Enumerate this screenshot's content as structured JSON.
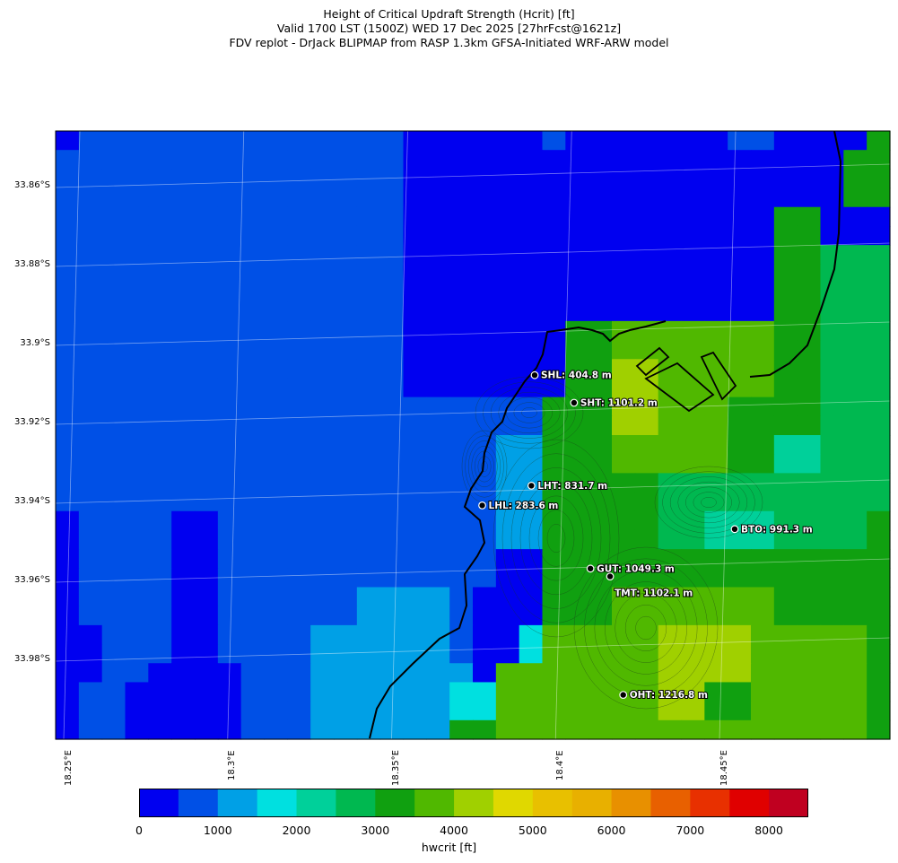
{
  "title": {
    "line1": "Height of Critical Updraft Strength (Hcrit) [ft]",
    "line2": "Valid 1700 LST (1500Z) WED 17 Dec 2025 [27hrFcst@1621z]",
    "line3": "FDV replot - DrJack BLIPMAP from RASP 1.3km GFSA-Initiated WRF-ARW model"
  },
  "axes": {
    "lat_labels": [
      "33.86°S",
      "33.88°S",
      "33.9°S",
      "33.92°S",
      "33.94°S",
      "33.96°S",
      "33.98°S"
    ],
    "lon_labels": [
      "18.25°E",
      "18.3°E",
      "18.35°E",
      "18.4°E",
      "18.45°E"
    ]
  },
  "stations": [
    {
      "code": "SHL",
      "label": "SHL: 404.8 m",
      "lon": 18.392,
      "lat": -33.908
    },
    {
      "code": "SHT",
      "label": "SHT: 1101.2 m",
      "lon": 18.404,
      "lat": -33.915
    },
    {
      "code": "LHT",
      "label": "LHT: 831.7 m",
      "lon": 18.391,
      "lat": -33.936
    },
    {
      "code": "LHL",
      "label": "LHL: 283.6 m",
      "lon": 18.376,
      "lat": -33.941
    },
    {
      "code": "BTO",
      "label": "BTO: 991.3 m",
      "lon": 18.453,
      "lat": -33.947
    },
    {
      "code": "GUT",
      "label": "GUT: 1049.3 m",
      "lon": 18.409,
      "lat": -33.957
    },
    {
      "code": "TMT",
      "label": "TMT: 1102.1 m",
      "lon": 18.415,
      "lat": -33.959
    },
    {
      "code": "OHT",
      "label": "OHT: 1216.8 m",
      "lon": 18.419,
      "lat": -33.989
    }
  ],
  "colorbar": {
    "label": "hwcrit [ft]",
    "ticks": [
      "0",
      "1000",
      "2000",
      "3000",
      "4000",
      "5000",
      "6000",
      "7000",
      "8000"
    ],
    "colors": [
      "#0000f0",
      "#0050e6",
      "#00a0e6",
      "#00e0e0",
      "#00d09a",
      "#00b850",
      "#10a010",
      "#50b800",
      "#a0d000",
      "#e0d800",
      "#e8c000",
      "#e8b000",
      "#e89000",
      "#e86000",
      "#e83000",
      "#e00000",
      "#c00020"
    ]
  },
  "map_grid": {
    "colors": {
      "b0": "#0000f0",
      "b1": "#0050e6",
      "b2": "#00a0e6",
      "c": "#00e0e0",
      "t": "#00d09a",
      "g5": "#00b850",
      "g6": "#10a010",
      "g7": "#50b800",
      "y": "#a0d000"
    },
    "rows": [
      "b0 b1 b1 b1 b1 b1 b1 b1 b1 b1 b1 b1 b1 b1 b1 b0 b0 b0 b0 b0 b0 b1 b0 b0 b0 b0 b0 b0 b0 b1 b1 b0 b0 b0 b0 g6",
      "b1 b1 b1 b1 b1 b1 b1 b1 b1 b1 b1 b1 b1 b1 b1 b0 b0 b0 b0 b0 b0 b0 b0 b0 b0 b0 b0 b0 b0 b0 b0 b0 b0 b0 g6 g6",
      "b1 b1 b1 b1 b1 b1 b1 b1 b1 b1 b1 b1 b1 b1 b1 b0 b0 b0 b0 b0 b0 b0 b0 b0 b0 b0 b0 b0 b0 b0 b0 b0 b0 b0 g6 g6",
      "b1 b1 b1 b1 b1 b1 b1 b1 b1 b1 b1 b1 b1 b1 b1 b0 b0 b0 b0 b0 b0 b0 b0 b0 b0 b0 b0 b0 b0 b0 b0 b0 b0 b0 g6 g6",
      "b1 b1 b1 b1 b1 b1 b1 b1 b1 b1 b1 b1 b1 b1 b1 b0 b0 b0 b0 b0 b0 b0 b0 b0 b0 b0 b0 b0 b0 b0 b0 g6 g6 b0 b0 b0",
      "b1 b1 b1 b1 b1 b1 b1 b1 b1 b1 b1 b1 b1 b1 b1 b0 b0 b0 b0 b0 b0 b0 b0 b0 b0 b0 b0 b0 b0 b0 b0 g6 g6 b0 b0 b0",
      "b1 b1 b1 b1 b1 b1 b1 b1 b1 b1 b1 b1 b1 b1 b1 b0 b0 b0 b0 b0 b0 b0 b0 b0 b0 b0 b0 b0 b0 b0 b0 g6 g6 g5 g5 g5",
      "b1 b1 b1 b1 b1 b1 b1 b1 b1 b1 b1 b1 b1 b1 b1 b0 b0 b0 b0 b0 b0 b0 b0 b0 b0 b0 b0 b0 b0 b0 b0 g6 g6 g5 g5 g5",
      "b1 b1 b1 b1 b1 b1 b1 b1 b1 b1 b1 b1 b1 b1 b1 b0 b0 b0 b0 b0 b0 b0 b0 b0 b0 b0 b0 b0 b0 b0 b0 g6 g6 g5 g5 g5",
      "b1 b1 b1 b1 b1 b1 b1 b1 b1 b1 b1 b1 b1 b1 b1 b0 b0 b0 b0 b0 b0 b0 b0 b0 b0 b0 b0 b0 b0 b0 b0 g6 g6 g5 g5 g5",
      "b1 b1 b1 b1 b1 b1 b1 b1 b1 b1 b1 b1 b1 b1 b1 b0 b0 b0 b0 b0 b0 b0 g6 g6 g7 g7 g7 g7 g7 g7 g7 g6 g6 g5 g5 g5",
      "b1 b1 b1 b1 b1 b1 b1 b1 b1 b1 b1 b1 b1 b1 b1 b0 b0 b0 b0 b0 b0 b0 g6 g6 g7 g7 g7 g7 g7 g7 g7 g6 g6 g5 g5 g5",
      "b1 b1 b1 b1 b1 b1 b1 b1 b1 b1 b1 b1 b1 b1 b1 b0 b0 b0 b0 b0 b0 b0 g6 g6 y y g7 g7 g7 g7 g7 g6 g6 g5 g5 g5",
      "b1 b1 b1 b1 b1 b1 b1 b1 b1 b1 b1 b1 b1 b1 b1 b0 b0 b0 b0 b0 b0 b0 g6 g6 y y g7 g7 g7 g7 g7 g6 g6 g5 g5 g5",
      "b1 b1 b1 b1 b1 b1 b1 b1 b1 b1 b1 b1 b1 b1 b1 b1 b1 b1 b1 b1 b1 g6 g6 g6 y y g7 g7 g7 g6 g6 g6 g6 g5 g5 g5",
      "b1 b1 b1 b1 b1 b1 b1 b1 b1 b1 b1 b1 b1 b1 b1 b1 b1 b1 b1 b1 b1 g6 g6 g6 y y g7 g7 g7 g6 g6 g6 g6 g5 g5 g5",
      "b1 b1 b1 b1 b1 b1 b1 b1 b1 b1 b1 b1 b1 b1 b1 b1 b1 b1 b1 b2 b2 g6 g6 g6 g7 g7 g7 g7 g7 g6 g6 t t g5 g5 g5",
      "b1 b1 b1 b1 b1 b1 b1 b1 b1 b1 b1 b1 b1 b1 b1 b1 b1 b1 b1 b2 b2 g6 g6 g6 g7 g7 g7 g7 g7 g6 g6 t t g5 g5 g5",
      "b1 b1 b1 b1 b1 b1 b1 b1 b1 b1 b1 b1 b1 b1 b1 b1 b1 b1 b1 b2 b2 g6 g6 g6 g6 g6 g5 g5 g5 g5 g5 g5 g5 g5 g5 g5",
      "b1 b1 b1 b1 b1 b1 b1 b1 b1 b1 b1 b1 b1 b1 b1 b1 b1 b1 b1 b2 b2 g6 g6 g6 g6 g6 g5 g5 g5 g5 g5 g5 g5 g5 g5 g5",
      "b0 b1 b1 b1 b1 b0 b0 b1 b1 b1 b1 b1 b1 b1 b1 b1 b1 b1 b1 b2 b2 g6 g6 g6 g6 g6 g5 g5 t t t g5 g5 g5 g5 g6",
      "b0 b1 b1 b1 b1 b0 b0 b1 b1 b1 b1 b1 b1 b1 b1 b1 b1 b1 b1 b2 b2 g6 g6 g6 g6 g6 g5 g5 t t t g5 g5 g5 g5 g6",
      "b0 b1 b1 b1 b1 b0 b0 b1 b1 b1 b1 b1 b1 b1 b1 b1 b1 b1 b1 b0 b0 g6 g6 g6 g6 g6 g6 g6 g6 g6 g6 g6 g6 g6 g6 g6",
      "b0 b1 b1 b1 b1 b0 b0 b1 b1 b1 b1 b1 b1 b1 b1 b1 b1 b1 b1 b0 b0 g6 g6 g6 g6 g6 g6 g6 g6 g6 g6 g6 g6 g6 g6 g6",
      "b0 b1 b1 b1 b1 b0 b0 b1 b1 b1 b1 b1 b1 b2 b2 b2 b2 b1 b0 b0 b0 g6 g6 g6 g7 g7 g7 g7 g7 g7 g7 g6 g6 g6 g6 g6",
      "b0 b1 b1 b1 b1 b0 b0 b1 b1 b1 b1 b1 b1 b2 b2 b2 b2 b1 b0 b0 b0 g6 g6 g6 g7 g7 g7 g7 g7 g7 g7 g6 g6 g6 g6 g6",
      "b0 b0 b1 b1 b1 b0 b0 b1 b1 b1 b1 b2 b2 b2 b2 b2 b2 b1 b0 b0 c g7 g7 g7 g7 g7 y y y y g7 g7 g7 g7 g7 g6",
      "b0 b0 b1 b1 b1 b0 b0 b1 b1 b1 b1 b2 b2 b2 b2 b2 b2 b1 b0 b0 c g7 g7 g7 g7 g7 y y y y g7 g7 g7 g7 g7 g6",
      "b0 b0 b1 b1 b0 b0 b0 b0 b1 b1 b1 b2 b2 b2 b2 b2 b2 b2 b0 g7 g7 g7 g7 g7 g7 g7 y y y y g7 g7 g7 g7 g7 g6",
      "b0 b1 b1 b0 b0 b0 b0 b0 b1 b1 b1 b2 b2 b2 b2 b2 b2 c c g7 g7 g7 g7 g7 g7 g7 y y g6 g6 g7 g7 g7 g7 g7 g6",
      "b0 b1 b1 b0 b0 b0 b0 b0 b1 b1 b1 b2 b2 b2 b2 b2 b2 c c g7 g7 g7 g7 g7 g7 g7 y y g6 g6 g7 g7 g7 g7 g7 g6",
      "b0 b1 b1 b0 b0 b0 b0 b0 b1 b1 b1 b2 b2 b2 b2 b2 b2 g6 g6 g7 g7 g7 g7 g7 g7 g7 g7 g7 g7 g7 g7 g7 g7 g7 g7 g6"
    ]
  }
}
